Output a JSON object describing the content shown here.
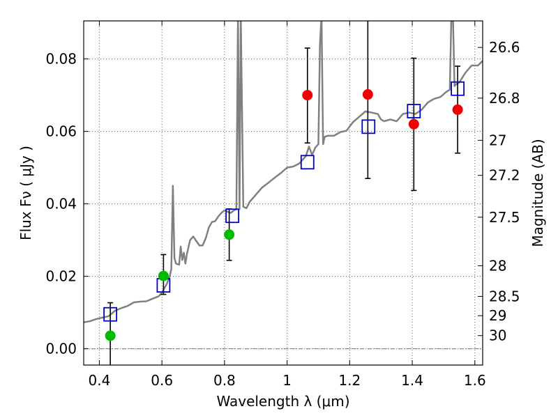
{
  "chart_data": {
    "type": "scatter",
    "xlabel": "Wavelength  λ (μm)",
    "ylabel": "Flux  Fν  ( μJy )",
    "ylabel_right": "Magnitude (AB)",
    "xlim": [
      0.35,
      1.625
    ],
    "ylim": [
      -0.0045,
      0.0905
    ],
    "grid": true,
    "x_ticks": [
      {
        "value": 0.4,
        "label": "0.4"
      },
      {
        "value": 0.6,
        "label": "0.6"
      },
      {
        "value": 0.8,
        "label": "0.8"
      },
      {
        "value": 1.0,
        "label": "1"
      },
      {
        "value": 1.2,
        "label": "1.2"
      },
      {
        "value": 1.4,
        "label": "1.4"
      },
      {
        "value": 1.6,
        "label": "1.6"
      }
    ],
    "y_ticks": [
      {
        "value": 0.0,
        "label": "0.00"
      },
      {
        "value": 0.02,
        "label": "0.02"
      },
      {
        "value": 0.04,
        "label": "0.04"
      },
      {
        "value": 0.06,
        "label": "0.06"
      },
      {
        "value": 0.08,
        "label": "0.08"
      }
    ],
    "right_ticks": [
      {
        "mag": 26.6,
        "label": "26.6"
      },
      {
        "mag": 26.8,
        "label": "26.8"
      },
      {
        "mag": 27.0,
        "label": "27"
      },
      {
        "mag": 27.2,
        "label": "27.2"
      },
      {
        "mag": 27.5,
        "label": "27.5"
      },
      {
        "mag": 28.0,
        "label": "28"
      },
      {
        "mag": 28.5,
        "label": "28.5"
      },
      {
        "mag": 29.0,
        "label": "29"
      },
      {
        "mag": 30.0,
        "label": "30"
      }
    ],
    "colors": {
      "spectrum": "#808080",
      "model": "#0000cc",
      "detection_optical": "#00bb00",
      "detection_ir": "#ee0000",
      "errorbar": "#000000",
      "zero_line": "#777777"
    },
    "spectrum": {
      "x": [
        0.35,
        0.37,
        0.39,
        0.41,
        0.43,
        0.45,
        0.47,
        0.49,
        0.51,
        0.53,
        0.55,
        0.57,
        0.59,
        0.6,
        0.615,
        0.625,
        0.63,
        0.635,
        0.64,
        0.645,
        0.655,
        0.66,
        0.665,
        0.67,
        0.675,
        0.68,
        0.69,
        0.7,
        0.71,
        0.72,
        0.73,
        0.74,
        0.75,
        0.76,
        0.77,
        0.78,
        0.79,
        0.8,
        0.81,
        0.82,
        0.83,
        0.838,
        0.843,
        0.848,
        0.852,
        0.86,
        0.87,
        0.88,
        0.9,
        0.92,
        0.94,
        0.96,
        0.98,
        1.0,
        1.02,
        1.04,
        1.06,
        1.07,
        1.08,
        1.09,
        1.1,
        1.105,
        1.11,
        1.115,
        1.12,
        1.13,
        1.15,
        1.17,
        1.19,
        1.21,
        1.23,
        1.25,
        1.27,
        1.29,
        1.3,
        1.31,
        1.33,
        1.35,
        1.37,
        1.39,
        1.41,
        1.43,
        1.45,
        1.47,
        1.49,
        1.51,
        1.52,
        1.525,
        1.53,
        1.535,
        1.54,
        1.55,
        1.57,
        1.59,
        1.61,
        1.625
      ],
      "y": [
        0.0073,
        0.0076,
        0.0082,
        0.0086,
        0.009,
        0.0105,
        0.0112,
        0.0118,
        0.0128,
        0.013,
        0.0131,
        0.0138,
        0.0145,
        0.0155,
        0.0178,
        0.02,
        0.022,
        0.045,
        0.025,
        0.0235,
        0.0232,
        0.0282,
        0.0245,
        0.0265,
        0.0235,
        0.0262,
        0.03,
        0.031,
        0.0297,
        0.0285,
        0.0285,
        0.0305,
        0.0335,
        0.035,
        0.0352,
        0.0365,
        0.0375,
        0.0382,
        0.0378,
        0.0375,
        0.0382,
        0.0385,
        0.092,
        0.0385,
        0.092,
        0.0392,
        0.0388,
        0.0405,
        0.0425,
        0.0445,
        0.0458,
        0.0472,
        0.0485,
        0.05,
        0.0503,
        0.0512,
        0.0532,
        0.0558,
        0.0535,
        0.0555,
        0.0565,
        0.084,
        0.092,
        0.0565,
        0.0585,
        0.0588,
        0.0588,
        0.0598,
        0.0602,
        0.0625,
        0.064,
        0.0655,
        0.0652,
        0.0648,
        0.0633,
        0.0628,
        0.0633,
        0.0628,
        0.0648,
        0.0652,
        0.0648,
        0.066,
        0.068,
        0.069,
        0.0695,
        0.071,
        0.0715,
        0.092,
        0.092,
        0.0725,
        0.073,
        0.0735,
        0.0762,
        0.0782,
        0.0782,
        0.0795
      ]
    },
    "model_points": {
      "x": [
        0.435,
        0.605,
        0.825,
        1.065,
        1.26,
        1.405,
        1.545
      ],
      "y": [
        0.0095,
        0.0175,
        0.0367,
        0.0515,
        0.0613,
        0.0656,
        0.0718
      ]
    },
    "detections_optical": {
      "x": [
        0.435,
        0.605,
        0.815
      ],
      "y": [
        0.0036,
        0.0201,
        0.0315
      ],
      "yerr_low": [
        0.0103,
        0.0051,
        0.0071
      ],
      "yerr_high": [
        0.0091,
        0.0059,
        0.0071
      ]
    },
    "detections_ir": {
      "x": [
        1.065,
        1.258,
        1.405,
        1.545
      ],
      "y": [
        0.07,
        0.0702,
        0.062,
        0.066
      ],
      "yerr_low": [
        0.0132,
        0.0232,
        0.0183,
        0.012
      ],
      "yerr_high": [
        0.013,
        0.024,
        0.0182,
        0.012
      ]
    }
  }
}
